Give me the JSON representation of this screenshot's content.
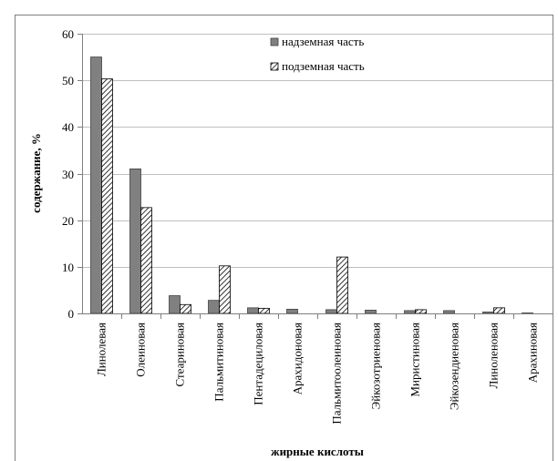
{
  "chart_data": {
    "type": "bar",
    "xlabel": "жирные кислоты",
    "ylabel": "содержание, %",
    "ylim": [
      0,
      60
    ],
    "yticks": [
      0,
      10,
      20,
      30,
      40,
      50,
      60
    ],
    "grid": true,
    "legend_position": "top-right",
    "categories": [
      "Линолевая",
      "Олеиновая",
      "Стеариновая",
      "Пальмитиновая",
      "Пентадециловая",
      "Арахидоновая",
      "Пальмитоолеиновая",
      "Эйкозотриеновая",
      "Миристиновая",
      "Эйкозендиеновая",
      "Линоленовая",
      "Арахиновая"
    ],
    "series": [
      {
        "name": "надземная часть",
        "pattern": "solid",
        "color": "#808080",
        "values": [
          55,
          31,
          3.8,
          2.8,
          1.2,
          0.9,
          0.8,
          0.7,
          0.6,
          0.6,
          0.3,
          0.1
        ]
      },
      {
        "name": "подземная часть",
        "pattern": "hatched",
        "color": "#000000",
        "values": [
          50.3,
          22.7,
          1.9,
          10.2,
          1.1,
          0,
          12.1,
          0,
          0.8,
          0,
          1.2,
          0
        ]
      }
    ]
  }
}
